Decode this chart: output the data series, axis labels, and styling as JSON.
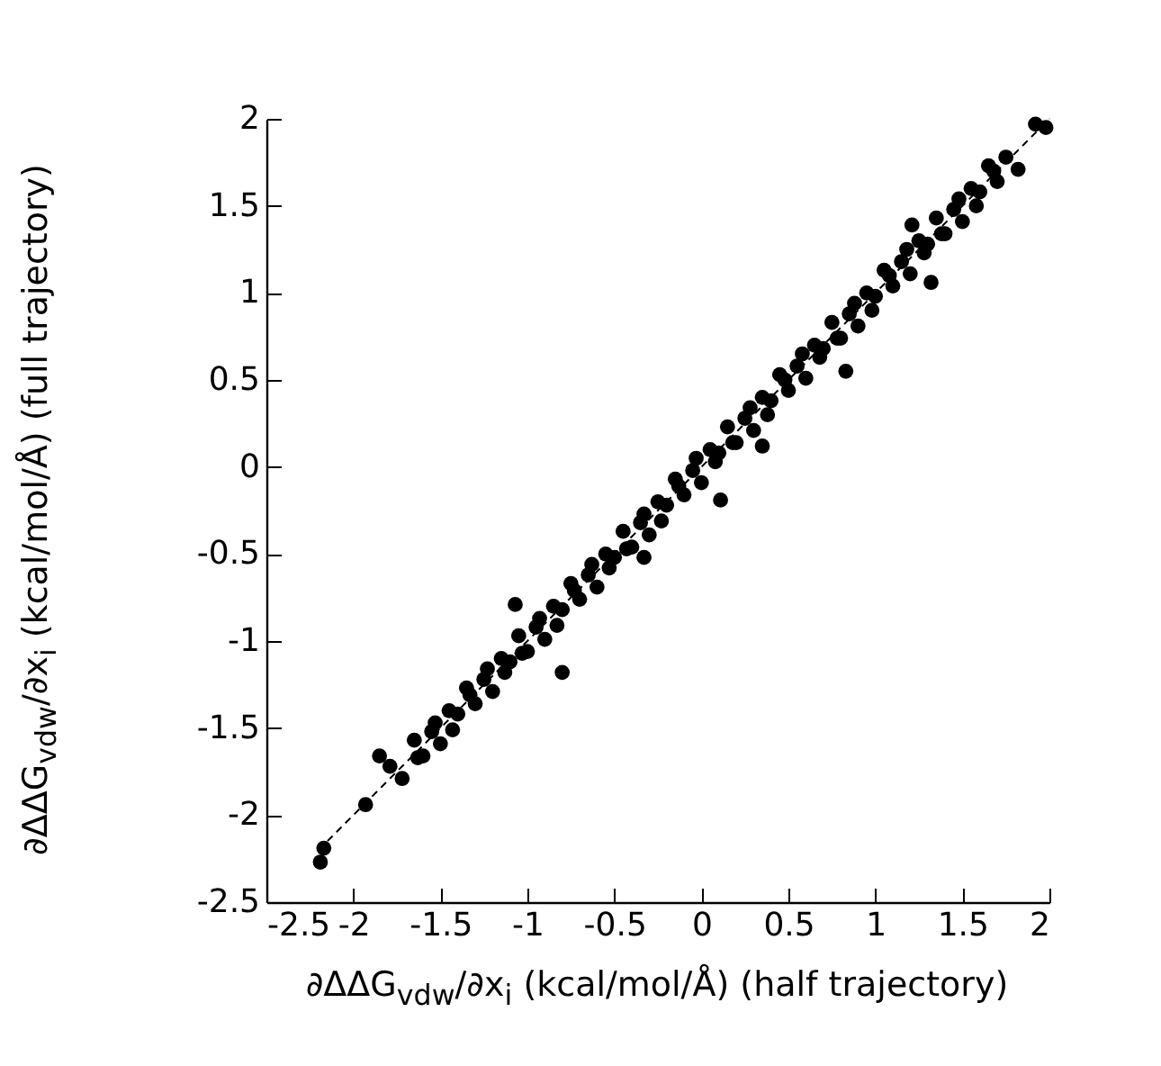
{
  "chart_data": {
    "type": "scatter",
    "xlabel": "∂ΔΔG$_{vdw}$/∂x$_{i}$ (kcal/mol/Å) (half trajectory)",
    "ylabel": "∂ΔΔG$_{vdw}$/∂x$_{i}$ (kcal/mol/Å) (full trajectory)",
    "xlim": [
      -2.5,
      2
    ],
    "ylim": [
      -2.5,
      2
    ],
    "xticks": [
      -2.5,
      -2,
      -1.5,
      -1,
      -0.5,
      0,
      0.5,
      1,
      1.5,
      2
    ],
    "yticks": [
      -2.5,
      -2,
      -1.5,
      -1,
      -0.5,
      0,
      0.5,
      1,
      1.5,
      2
    ],
    "grid": false,
    "series": [
      {
        "type": "line",
        "color": "#000000",
        "line_style": "dashed",
        "x": [
          -2.2,
          2
        ],
        "values": [
          -2.2,
          2
        ]
      },
      {
        "color": "#000000",
        "marker": "circle",
        "x": [
          -1.65,
          -1.6,
          -1.55,
          -1.5,
          -1.45,
          -1.4,
          -1.35,
          -1.3,
          -1.25,
          -1.2,
          -1.15,
          -1.1,
          -1.05,
          -1,
          -0.95,
          -0.9,
          -0.85,
          -0.8,
          -0.75,
          -0.7,
          -0.65,
          -0.6,
          -0.55,
          -0.5,
          -0.45,
          -0.4,
          -0.35,
          -0.3,
          -0.25,
          -0.2,
          -0.15,
          -0.1,
          -0.05,
          0,
          0.05,
          0.1,
          0.15,
          0.2,
          0.25,
          0.3,
          0.35,
          0.4,
          0.45,
          0.5,
          0.55,
          0.6,
          0.65,
          0.7,
          0.75,
          0.8,
          0.85,
          0.9,
          0.95,
          1,
          1.05,
          1.1,
          1.15,
          1.2,
          1.25,
          1.3,
          1.35,
          1.4,
          1.45,
          1.5,
          1.55,
          1.6,
          1.65,
          1.7,
          1.75,
          -1.63,
          -1.53,
          -1.43,
          -1.33,
          -1.23,
          -1.13,
          -1.03,
          -0.93,
          -0.83,
          -0.73,
          -0.63,
          -0.53,
          -0.43,
          -0.33,
          -0.23,
          -0.13,
          -0.03,
          0.08,
          0.18,
          0.28,
          0.38,
          0.48,
          0.58,
          0.68,
          0.78,
          0.88,
          0.98,
          1.08,
          1.18,
          1.28,
          1.38,
          1.48,
          1.58,
          1.68,
          0.83,
          0.11,
          -0.8,
          -1.07,
          1.32,
          1.21,
          1.98,
          1.92,
          -2.19,
          -2.17,
          -1.93,
          -1.85,
          -1.72,
          -1.79,
          -0.33,
          0.35,
          1.82
        ],
        "values": [
          -1.57,
          -1.66,
          -1.52,
          -1.59,
          -1.4,
          -1.42,
          -1.27,
          -1.36,
          -1.22,
          -1.29,
          -1.1,
          -1.12,
          -0.97,
          -1.06,
          -0.92,
          -0.99,
          -0.8,
          -0.82,
          -0.67,
          -0.76,
          -0.62,
          -0.69,
          -0.5,
          -0.52,
          -0.37,
          -0.46,
          -0.32,
          -0.39,
          -0.2,
          -0.22,
          -0.07,
          -0.16,
          -0.02,
          -0.09,
          0.1,
          0.08,
          0.23,
          0.14,
          0.28,
          0.21,
          0.4,
          0.38,
          0.53,
          0.44,
          0.58,
          0.51,
          0.7,
          0.68,
          0.83,
          0.74,
          0.88,
          0.81,
          1,
          0.98,
          1.13,
          1.04,
          1.18,
          1.11,
          1.3,
          1.28,
          1.43,
          1.34,
          1.48,
          1.41,
          1.6,
          1.58,
          1.73,
          1.64,
          1.78,
          -1.67,
          -1.47,
          -1.51,
          -1.31,
          -1.16,
          -1.18,
          -1.07,
          -0.87,
          -0.91,
          -0.71,
          -0.56,
          -0.58,
          -0.47,
          -0.27,
          -0.31,
          -0.11,
          0.05,
          0.03,
          0.14,
          0.34,
          0.3,
          0.5,
          0.65,
          0.63,
          0.74,
          0.94,
          0.9,
          1.1,
          1.25,
          1.23,
          1.34,
          1.54,
          1.5,
          1.7,
          0.55,
          -0.19,
          -1.18,
          -0.79,
          1.06,
          1.39,
          1.95,
          1.97,
          -2.27,
          -2.19,
          -1.94,
          -1.66,
          -1.79,
          -1.72,
          -0.52,
          0.12,
          1.71
        ]
      }
    ]
  }
}
